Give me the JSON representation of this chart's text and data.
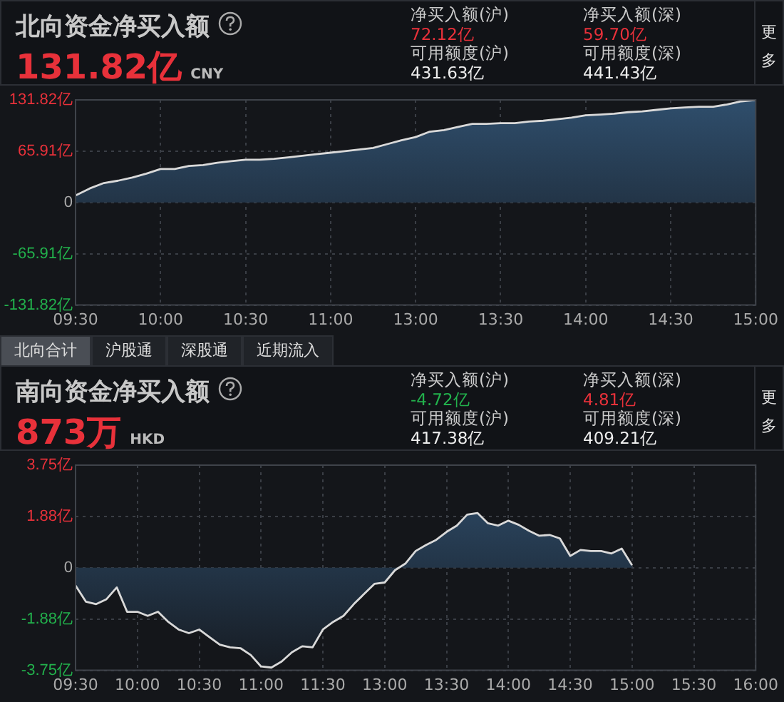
{
  "chart_data": [
    {
      "type": "area",
      "title": "北向资金净买入额",
      "subtitle": "131.82亿",
      "annotations": [
        "CNY",
        "净买入额(沪)",
        "72.12亿",
        "净买入额(深)",
        "59.70亿",
        "可用额度(沪)",
        "431.63亿",
        "可用额度(深)",
        "441.43亿",
        "更多",
        "北向合计",
        "沪股通",
        "深股通",
        "近期流入"
      ],
      "categories": [
        "09:30",
        null,
        null,
        null,
        null,
        null,
        "10:00",
        null,
        null,
        null,
        null,
        null,
        "10:30",
        null,
        null,
        null,
        null,
        null,
        "11:00",
        null,
        null,
        null,
        null,
        null,
        "13:00",
        null,
        null,
        null,
        null,
        null,
        "13:30",
        null,
        null,
        null,
        null,
        null,
        "14:00",
        null,
        null,
        null,
        null,
        null,
        "14:30",
        null,
        null,
        null,
        null,
        null,
        "15:00"
      ],
      "series": [
        {
          "color": "#d9d9d9",
          "values": [
            9,
            18,
            25,
            28,
            32,
            37,
            43,
            43,
            47,
            48,
            51,
            53,
            55,
            55,
            56,
            58,
            60,
            62,
            64,
            66,
            68,
            70,
            75,
            80,
            84,
            91,
            93,
            97,
            101,
            101,
            102,
            102,
            104,
            105,
            107,
            109,
            112,
            113,
            114,
            116,
            117,
            119,
            121,
            122,
            123,
            123,
            126,
            130,
            131.82
          ]
        }
      ],
      "ylim": [
        -131.82,
        131.82
      ],
      "yticks": [
        {
          "value": -131.82,
          "label": "-131.82亿"
        },
        {
          "value": -65.91,
          "label": "-65.91亿"
        },
        0,
        {
          "value": 65.91,
          "label": "65.91亿"
        },
        {
          "value": 131.82,
          "label": "131.82亿"
        }
      ],
      "grid": true
    },
    {
      "type": "area",
      "title": "南向资金净买入额",
      "subtitle": "873万",
      "annotations": [
        "HKD",
        "净买入额(沪)",
        "-4.72亿",
        "净买入额(深)",
        "4.81亿",
        "可用额度(沪)",
        "417.38亿",
        "可用额度(深)",
        "409.21亿",
        "更多"
      ],
      "categories": [
        "09:30",
        null,
        null,
        null,
        null,
        null,
        "10:00",
        null,
        null,
        null,
        null,
        null,
        "10:30",
        null,
        null,
        null,
        null,
        null,
        "11:00",
        null,
        null,
        null,
        null,
        null,
        "11:30",
        null,
        null,
        null,
        null,
        null,
        "13:00",
        null,
        null,
        null,
        null,
        null,
        "13:30",
        null,
        null,
        null,
        null,
        null,
        "14:00",
        null,
        null,
        null,
        null,
        null,
        "14:30",
        null,
        null,
        null,
        null,
        null,
        "15:00",
        null,
        null,
        null,
        null,
        null,
        "15:30",
        null,
        null,
        null,
        null,
        null,
        "16:00"
      ],
      "series": [
        {
          "color": "#d9d9d9",
          "values": [
            -0.65,
            -1.24,
            -1.33,
            -1.15,
            -0.72,
            -1.61,
            -1.61,
            -1.76,
            -1.61,
            -1.98,
            -2.26,
            -2.39,
            -2.26,
            -2.54,
            -2.81,
            -2.91,
            -2.94,
            -3.19,
            -3.61,
            -3.65,
            -3.43,
            -3.09,
            -2.87,
            -2.91,
            -2.26,
            -1.98,
            -1.76,
            -1.33,
            -0.96,
            -0.59,
            -0.54,
            -0.09,
            0.15,
            0.61,
            0.83,
            1.02,
            1.31,
            1.54,
            1.94,
            2.0,
            1.63,
            1.54,
            1.72,
            1.57,
            1.35,
            1.17,
            1.2,
            1.07,
            0.43,
            0.65,
            0.61,
            0.61,
            0.52,
            0.7,
            0.09,
            null,
            null,
            null,
            null,
            null,
            null,
            null,
            null,
            null,
            null,
            null,
            null
          ]
        }
      ],
      "ylim": [
        -3.75,
        3.75
      ],
      "yticks": [
        {
          "value": -3.75,
          "label": "-3.75亿"
        },
        {
          "value": -1.88,
          "label": "-1.88亿"
        },
        0,
        {
          "value": 1.88,
          "label": "1.88亿"
        },
        {
          "value": 3.75,
          "label": "3.75亿"
        }
      ],
      "grid": true
    }
  ]
}
